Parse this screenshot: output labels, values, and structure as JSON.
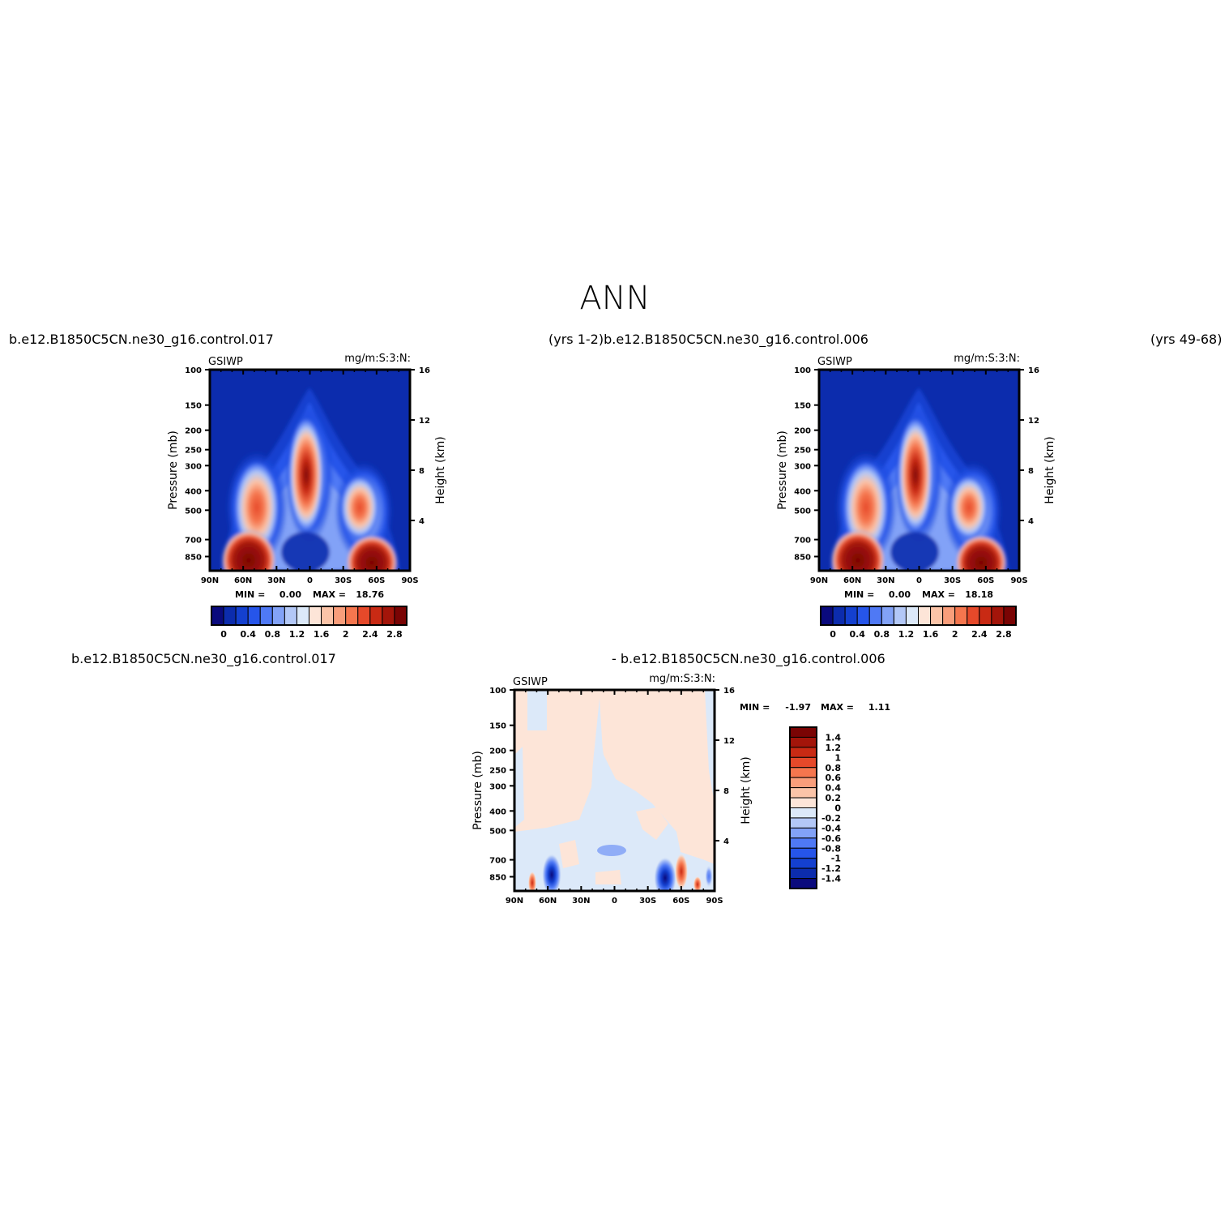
{
  "page": {
    "title": "ANN",
    "top_left_case": "b.e12.B1850C5CN.ne30_g16.control.017",
    "top_mid_label": "(yrs  1-2)b.e12.B1850C5CN.ne30_g16.control.006",
    "top_right_label": "(yrs  49-68)",
    "bottom_left_case": "b.e12.B1850C5CN.ne30_g16.control.017",
    "bottom_mid_label": "- b.e12.B1850C5CN.ne30_g16.control.006"
  },
  "chart_data": [
    {
      "type": "heatmap",
      "variable_label": "GSIWP",
      "units_label": "mg/m:S:3:N:",
      "ylabel": "Pressure (mb)",
      "y2label": "Height (km)",
      "xticks": [
        "90N",
        "60N",
        "30N",
        "0",
        "30S",
        "60S",
        "90S"
      ],
      "yticks": [
        "100",
        "150",
        "200",
        "250",
        "300",
        "400",
        "500",
        "700",
        "850"
      ],
      "y2ticks": [
        "16",
        "12",
        "8",
        "4"
      ],
      "min_label": "MIN =",
      "min_value": "0.00",
      "max_label": "MAX =",
      "max_value": "18.76",
      "colorbar_orientation": "horizontal",
      "colorbar_labels": [
        "0",
        "0.4",
        "0.8",
        "1.2",
        "1.6",
        "2",
        "2.4",
        "2.8"
      ],
      "colors": [
        "#0a0a7d",
        "#0c2cad",
        "#1440cf",
        "#2655ea",
        "#4f79f5",
        "#82a2f7",
        "#b3c8f7",
        "#dce9f9",
        "#fde5d8",
        "#fbc4a8",
        "#f99e7b",
        "#f5764e",
        "#e6492a",
        "#c92a14",
        "#a3150a",
        "#7a0404"
      ]
    },
    {
      "type": "heatmap",
      "variable_label": "GSIWP",
      "units_label": "mg/m:S:3:N:",
      "ylabel": "Pressure (mb)",
      "y2label": "Height (km)",
      "xticks": [
        "90N",
        "60N",
        "30N",
        "0",
        "30S",
        "60S",
        "90S"
      ],
      "yticks": [
        "100",
        "150",
        "200",
        "250",
        "300",
        "400",
        "500",
        "700",
        "850"
      ],
      "y2ticks": [
        "16",
        "12",
        "8",
        "4"
      ],
      "min_label": "MIN =",
      "min_value": "0.00",
      "max_label": "MAX =",
      "max_value": "18.18",
      "colorbar_orientation": "horizontal",
      "colorbar_labels": [
        "0",
        "0.4",
        "0.8",
        "1.2",
        "1.6",
        "2",
        "2.4",
        "2.8"
      ],
      "colors": [
        "#0a0a7d",
        "#0c2cad",
        "#1440cf",
        "#2655ea",
        "#4f79f5",
        "#82a2f7",
        "#b3c8f7",
        "#dce9f9",
        "#fde5d8",
        "#fbc4a8",
        "#f99e7b",
        "#f5764e",
        "#e6492a",
        "#c92a14",
        "#a3150a",
        "#7a0404"
      ]
    },
    {
      "type": "heatmap",
      "variable_label": "GSIWP",
      "units_label": "mg/m:S:3:N:",
      "ylabel": "Pressure (mb)",
      "y2label": "Height (km)",
      "xticks": [
        "90N",
        "60N",
        "30N",
        "0",
        "30S",
        "60S",
        "90S"
      ],
      "yticks": [
        "100",
        "150",
        "200",
        "250",
        "300",
        "400",
        "500",
        "700",
        "850"
      ],
      "y2ticks": [
        "16",
        "12",
        "8",
        "4"
      ],
      "min_label": "MIN =",
      "min_value": "-1.97",
      "max_label": "MAX =",
      "max_value": "1.11",
      "colorbar_orientation": "vertical",
      "colorbar_labels": [
        "1.4",
        "1.2",
        "1",
        "0.8",
        "0.6",
        "0.4",
        "0.2",
        "0",
        "-0.2",
        "-0.4",
        "-0.6",
        "-0.8",
        "-1",
        "-1.2",
        "-1.4"
      ],
      "colors": [
        "#7a0404",
        "#a3150a",
        "#c92a14",
        "#e6492a",
        "#f5764e",
        "#f99e7b",
        "#fbc4a8",
        "#fde5d8",
        "#dce9f9",
        "#b3c8f7",
        "#82a2f7",
        "#4f79f5",
        "#2655ea",
        "#1440cf",
        "#0c2cad",
        "#0a0a7d"
      ]
    }
  ]
}
